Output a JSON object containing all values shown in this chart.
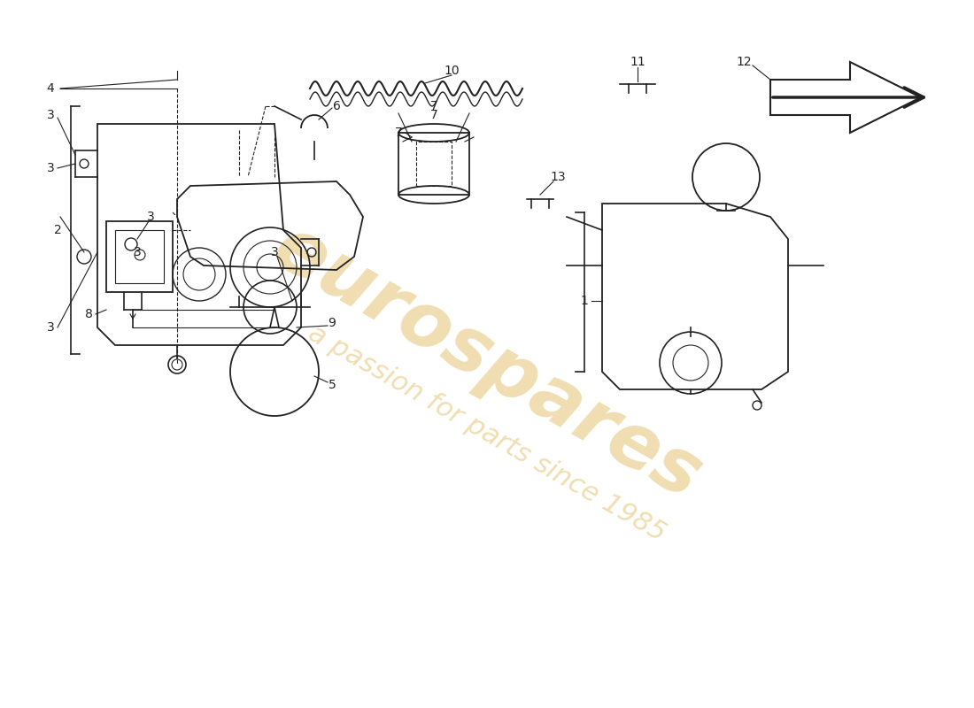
{
  "title": "",
  "background_color": "#ffffff",
  "watermark_text": "eurospares",
  "watermark_subtext": "a passion for parts since 1985",
  "watermark_color": "#d4a020",
  "watermark_alpha": 0.35,
  "part_numbers": [
    1,
    2,
    3,
    4,
    5,
    6,
    7,
    8,
    9,
    10,
    11,
    12,
    13
  ],
  "line_color": "#222222",
  "label_color": "#222222",
  "font_size": 10,
  "title_font_size": 10
}
